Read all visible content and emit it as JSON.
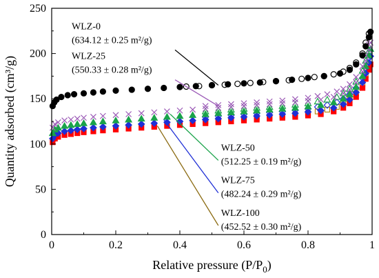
{
  "chart_data": {
    "type": "scatter",
    "xlabel": "Relative pressure (P/P",
    "xlabel_sub": "0",
    "xlabel_tail": ")",
    "ylabel": "Quantity adsorbed (cm³/g)",
    "xlim": [
      0,
      1
    ],
    "ylim": [
      0,
      250
    ],
    "x_ticks": [
      "0",
      "0.2",
      "0.4",
      "0.6",
      "0.8",
      "1"
    ],
    "x_tick_values": [
      0,
      0.2,
      0.4,
      0.6,
      0.8,
      1
    ],
    "y_ticks": [
      "0",
      "50",
      "100",
      "150",
      "200",
      "250"
    ],
    "y_tick_values": [
      0,
      50,
      100,
      150,
      200,
      250
    ],
    "grid": false,
    "series": [
      {
        "name": "WLZ-0",
        "area": "(634.12 ± 0.25 m²/g)",
        "color": "#000000",
        "marker": "circle",
        "adsorption": [
          [
            0.003,
            142
          ],
          [
            0.008,
            146
          ],
          [
            0.015,
            149
          ],
          [
            0.03,
            152
          ],
          [
            0.05,
            154
          ],
          [
            0.07,
            155
          ],
          [
            0.1,
            156
          ],
          [
            0.13,
            157
          ],
          [
            0.16,
            158
          ],
          [
            0.2,
            159
          ],
          [
            0.25,
            160
          ],
          [
            0.3,
            161
          ],
          [
            0.35,
            162
          ],
          [
            0.4,
            163
          ],
          [
            0.45,
            164
          ],
          [
            0.5,
            165
          ],
          [
            0.55,
            166
          ],
          [
            0.6,
            167
          ],
          [
            0.65,
            168
          ],
          [
            0.7,
            169.5
          ],
          [
            0.75,
            171
          ],
          [
            0.8,
            173
          ],
          [
            0.85,
            175
          ],
          [
            0.9,
            178
          ],
          [
            0.93,
            182
          ],
          [
            0.95,
            188
          ],
          [
            0.97,
            198
          ],
          [
            0.98,
            208
          ],
          [
            0.99,
            218
          ],
          [
            0.995,
            224
          ]
        ],
        "desorption": [
          [
            0.99,
            222
          ],
          [
            0.98,
            212
          ],
          [
            0.97,
            200
          ],
          [
            0.95,
            190
          ],
          [
            0.93,
            184
          ],
          [
            0.91,
            180
          ],
          [
            0.88,
            177
          ],
          [
            0.85,
            175
          ],
          [
            0.82,
            174
          ],
          [
            0.78,
            172
          ],
          [
            0.74,
            170.5
          ],
          [
            0.7,
            169.5
          ],
          [
            0.66,
            168.5
          ],
          [
            0.62,
            167.5
          ],
          [
            0.58,
            166.5
          ],
          [
            0.54,
            165.5
          ],
          [
            0.5,
            165
          ],
          [
            0.46,
            164
          ],
          [
            0.42,
            163.5
          ]
        ]
      },
      {
        "name": "WLZ-25",
        "area": "(550.33 ± 0.28 m²/g)",
        "color": "#9b59b6",
        "marker": "cross",
        "adsorption": [
          [
            0.003,
            118
          ],
          [
            0.01,
            122
          ],
          [
            0.02,
            124
          ],
          [
            0.04,
            126
          ],
          [
            0.06,
            127
          ],
          [
            0.08,
            128
          ],
          [
            0.1,
            129
          ],
          [
            0.13,
            130
          ],
          [
            0.16,
            131
          ],
          [
            0.2,
            132
          ],
          [
            0.24,
            133
          ],
          [
            0.28,
            134
          ],
          [
            0.32,
            135
          ],
          [
            0.36,
            136
          ],
          [
            0.4,
            137
          ],
          [
            0.44,
            138
          ],
          [
            0.48,
            139
          ],
          [
            0.52,
            140
          ],
          [
            0.56,
            141
          ],
          [
            0.6,
            142
          ],
          [
            0.64,
            143
          ],
          [
            0.68,
            144
          ],
          [
            0.72,
            145
          ],
          [
            0.76,
            146
          ],
          [
            0.8,
            147.5
          ],
          [
            0.84,
            149
          ],
          [
            0.88,
            152
          ],
          [
            0.91,
            156
          ],
          [
            0.93,
            160
          ],
          [
            0.95,
            168
          ],
          [
            0.97,
            180
          ],
          [
            0.98,
            192
          ],
          [
            0.99,
            204
          ],
          [
            0.995,
            212
          ]
        ],
        "desorption": [
          [
            0.99,
            210
          ],
          [
            0.98,
            198
          ],
          [
            0.97,
            186
          ],
          [
            0.95,
            174
          ],
          [
            0.93,
            166
          ],
          [
            0.91,
            161
          ],
          [
            0.89,
            158
          ],
          [
            0.86,
            155
          ],
          [
            0.83,
            153
          ],
          [
            0.8,
            151
          ],
          [
            0.76,
            149.5
          ],
          [
            0.72,
            148
          ],
          [
            0.68,
            147
          ],
          [
            0.64,
            146
          ],
          [
            0.6,
            145
          ],
          [
            0.56,
            144
          ],
          [
            0.52,
            143
          ],
          [
            0.48,
            142
          ]
        ]
      },
      {
        "name": "WLZ-50",
        "area": "(512.25 ± 0.19 m²/g)",
        "color": "#1aa34a",
        "marker": "triangle",
        "adsorption": [
          [
            0.003,
            112
          ],
          [
            0.01,
            116
          ],
          [
            0.02,
            118
          ],
          [
            0.04,
            120
          ],
          [
            0.06,
            121
          ],
          [
            0.08,
            122
          ],
          [
            0.1,
            123
          ],
          [
            0.13,
            124
          ],
          [
            0.16,
            125
          ],
          [
            0.2,
            126
          ],
          [
            0.24,
            127
          ],
          [
            0.28,
            128
          ],
          [
            0.32,
            129
          ],
          [
            0.36,
            130
          ],
          [
            0.4,
            131
          ],
          [
            0.44,
            132
          ],
          [
            0.48,
            133
          ],
          [
            0.52,
            134
          ],
          [
            0.56,
            135
          ],
          [
            0.6,
            136
          ],
          [
            0.64,
            137
          ],
          [
            0.68,
            138
          ],
          [
            0.72,
            139
          ],
          [
            0.76,
            140
          ],
          [
            0.8,
            141.5
          ],
          [
            0.84,
            143
          ],
          [
            0.88,
            146
          ],
          [
            0.91,
            150
          ],
          [
            0.93,
            155
          ],
          [
            0.95,
            163
          ],
          [
            0.97,
            175
          ],
          [
            0.98,
            186
          ],
          [
            0.99,
            198
          ],
          [
            0.995,
            205
          ]
        ],
        "desorption": [
          [
            0.99,
            203
          ],
          [
            0.98,
            192
          ],
          [
            0.97,
            181
          ],
          [
            0.95,
            169
          ],
          [
            0.93,
            161
          ],
          [
            0.91,
            156
          ],
          [
            0.89,
            152
          ],
          [
            0.86,
            149
          ],
          [
            0.83,
            147
          ],
          [
            0.8,
            145
          ],
          [
            0.76,
            143.5
          ],
          [
            0.72,
            142
          ],
          [
            0.68,
            141
          ],
          [
            0.64,
            140
          ],
          [
            0.6,
            139
          ],
          [
            0.56,
            138
          ],
          [
            0.52,
            137
          ],
          [
            0.48,
            136
          ]
        ]
      },
      {
        "name": "WLZ-75",
        "area": "(482.24 ± 0.29 m²/g)",
        "color": "#1f2fd6",
        "marker": "diamond",
        "adsorption": [
          [
            0.003,
            106
          ],
          [
            0.01,
            110
          ],
          [
            0.02,
            112
          ],
          [
            0.04,
            114
          ],
          [
            0.06,
            115
          ],
          [
            0.08,
            116
          ],
          [
            0.1,
            117
          ],
          [
            0.13,
            118
          ],
          [
            0.16,
            119
          ],
          [
            0.2,
            120
          ],
          [
            0.24,
            121
          ],
          [
            0.28,
            122
          ],
          [
            0.32,
            123
          ],
          [
            0.36,
            124
          ],
          [
            0.4,
            125
          ],
          [
            0.44,
            126
          ],
          [
            0.48,
            127
          ],
          [
            0.52,
            128
          ],
          [
            0.56,
            129
          ],
          [
            0.6,
            130
          ],
          [
            0.64,
            131
          ],
          [
            0.68,
            132
          ],
          [
            0.72,
            133
          ],
          [
            0.76,
            134
          ],
          [
            0.8,
            135.5
          ],
          [
            0.84,
            137
          ],
          [
            0.88,
            140
          ],
          [
            0.91,
            144
          ],
          [
            0.93,
            149
          ],
          [
            0.95,
            157
          ],
          [
            0.97,
            168
          ],
          [
            0.98,
            178
          ],
          [
            0.99,
            190
          ],
          [
            0.995,
            197
          ]
        ],
        "desorption": [
          [
            0.99,
            195
          ],
          [
            0.98,
            184
          ],
          [
            0.97,
            173
          ],
          [
            0.95,
            162
          ],
          [
            0.93,
            155
          ],
          [
            0.91,
            150
          ],
          [
            0.89,
            146
          ],
          [
            0.86,
            143
          ],
          [
            0.83,
            141
          ],
          [
            0.8,
            139
          ],
          [
            0.76,
            137.5
          ],
          [
            0.72,
            136
          ],
          [
            0.68,
            135
          ],
          [
            0.64,
            134
          ],
          [
            0.6,
            133
          ],
          [
            0.56,
            132
          ],
          [
            0.52,
            131
          ],
          [
            0.48,
            130
          ]
        ]
      },
      {
        "name": "WLZ-100",
        "area": "(452.52 ± 0.30 m²/g)",
        "color": "#ff0000",
        "open_color": "#b8860b",
        "marker": "square",
        "adsorption": [
          [
            0.003,
            102
          ],
          [
            0.01,
            106
          ],
          [
            0.02,
            108
          ],
          [
            0.04,
            110
          ],
          [
            0.06,
            111
          ],
          [
            0.08,
            112
          ],
          [
            0.1,
            113
          ],
          [
            0.13,
            114
          ],
          [
            0.16,
            115
          ],
          [
            0.2,
            116
          ],
          [
            0.24,
            117
          ],
          [
            0.28,
            118
          ],
          [
            0.32,
            119
          ],
          [
            0.36,
            120
          ],
          [
            0.4,
            121
          ],
          [
            0.44,
            122
          ],
          [
            0.48,
            123
          ],
          [
            0.52,
            124
          ],
          [
            0.56,
            125
          ],
          [
            0.6,
            126
          ],
          [
            0.64,
            127
          ],
          [
            0.68,
            128
          ],
          [
            0.72,
            129
          ],
          [
            0.76,
            130
          ],
          [
            0.8,
            131.5
          ],
          [
            0.84,
            133
          ],
          [
            0.88,
            136
          ],
          [
            0.91,
            140
          ],
          [
            0.93,
            145
          ],
          [
            0.95,
            152
          ],
          [
            0.97,
            162
          ],
          [
            0.98,
            172
          ],
          [
            0.99,
            182
          ],
          [
            0.995,
            188
          ]
        ],
        "desorption": [
          [
            0.99,
            186
          ],
          [
            0.98,
            176
          ],
          [
            0.97,
            166
          ],
          [
            0.95,
            156
          ],
          [
            0.93,
            149
          ],
          [
            0.91,
            145
          ],
          [
            0.89,
            141
          ],
          [
            0.86,
            138
          ],
          [
            0.83,
            136
          ],
          [
            0.8,
            134
          ],
          [
            0.76,
            132.5
          ],
          [
            0.72,
            131
          ],
          [
            0.68,
            130
          ],
          [
            0.64,
            129
          ],
          [
            0.6,
            128
          ],
          [
            0.56,
            127
          ],
          [
            0.52,
            126
          ],
          [
            0.48,
            125
          ]
        ]
      }
    ],
    "annotations": [
      {
        "series": 0,
        "line_color": "#000000",
        "from_label": [
          0.385,
          204
        ],
        "to_point": [
          0.52,
          165
        ]
      },
      {
        "series": 1,
        "line_color": "#9b59b6",
        "from_label": [
          0.385,
          171
        ],
        "to_point": [
          0.52,
          142
        ]
      },
      {
        "series": 2,
        "line_color": "#1aa34a",
        "from_label": [
          0.52,
          82
        ],
        "to_point": [
          0.37,
          133
        ]
      },
      {
        "series": 3,
        "line_color": "#1f2fd6",
        "from_label": [
          0.52,
          46
        ],
        "to_point": [
          0.35,
          127
        ]
      },
      {
        "series": 4,
        "line_color": "#8b6b12",
        "from_label": [
          0.52,
          10
        ],
        "to_point": [
          0.33,
          120
        ]
      }
    ]
  }
}
